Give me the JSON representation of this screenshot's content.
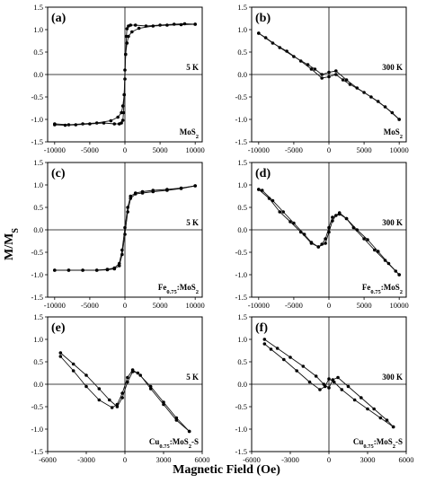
{
  "figure": {
    "xlabel": "Magnetic Field (Oe)",
    "ylabel": "M/M",
    "ylabel_sub": "S"
  },
  "chart_data": [
    {
      "type": "line",
      "label": "(a)",
      "temperature": "5 K",
      "sample": [
        {
          "t": "MoS"
        },
        {
          "t": "2",
          "sub": true
        }
      ],
      "xlim": [
        -11000,
        11000
      ],
      "ylim": [
        -1.5,
        1.5
      ],
      "xticks": [
        -10000,
        -5000,
        0,
        5000,
        10000
      ],
      "xtick_labels": [
        "-10000",
        "-5000",
        "0",
        "5000",
        "10000"
      ],
      "yticks": [
        -1.5,
        -1.0,
        -0.5,
        0.0,
        0.5,
        1.0,
        1.5
      ],
      "ytick_labels": [
        "-1.5",
        "-1.0",
        "-0.5",
        "0.0",
        "0.5",
        "1.0",
        "1.5"
      ],
      "series": [
        {
          "x": [
            -10000,
            -8000,
            -6000,
            -4000,
            -2000,
            -1000,
            -500,
            -300,
            -100,
            0,
            100,
            200,
            300,
            500,
            800,
            1500,
            3000,
            5000,
            7000,
            8500,
            10000
          ],
          "y": [
            -1.1,
            -1.12,
            -1.1,
            -1.08,
            -1.03,
            -0.95,
            -0.85,
            -0.7,
            -0.45,
            -0.1,
            0.45,
            0.85,
            1.02,
            1.08,
            1.1,
            1.1,
            1.08,
            1.1,
            1.12,
            1.13,
            1.12
          ]
        },
        {
          "x": [
            10000,
            8000,
            6000,
            4000,
            2000,
            1000,
            500,
            300,
            100,
            0,
            -100,
            -200,
            -300,
            -500,
            -800,
            -1500,
            -3000,
            -5000,
            -7000,
            -8500,
            -10000
          ],
          "y": [
            1.12,
            1.11,
            1.1,
            1.08,
            1.03,
            0.95,
            0.85,
            0.7,
            0.45,
            0.1,
            -0.45,
            -0.85,
            -1.02,
            -1.08,
            -1.1,
            -1.1,
            -1.08,
            -1.1,
            -1.12,
            -1.13,
            -1.12
          ]
        }
      ]
    },
    {
      "type": "line",
      "label": "(b)",
      "temperature": "300 K",
      "sample": [
        {
          "t": "MoS"
        },
        {
          "t": "2",
          "sub": true
        }
      ],
      "xlim": [
        -11000,
        11000
      ],
      "ylim": [
        -1.5,
        1.5
      ],
      "xticks": [
        -10000,
        -5000,
        0,
        5000,
        10000
      ],
      "xtick_labels": [
        "-10000",
        "-5000",
        "0",
        "5000",
        "10000"
      ],
      "yticks": [
        -1.5,
        -1.0,
        -0.5,
        0.0,
        0.5,
        1.0,
        1.5
      ],
      "ytick_labels": [
        "-1.5",
        "-1.0",
        "-0.5",
        "0.0",
        "0.5",
        "1.0",
        "1.5"
      ],
      "series": [
        {
          "x": [
            -10000,
            -8000,
            -6000,
            -4000,
            -2500,
            -1000,
            0,
            1000,
            2000,
            3000,
            5000,
            7000,
            9000,
            10000
          ],
          "y": [
            0.92,
            0.7,
            0.52,
            0.3,
            0.12,
            -0.08,
            -0.05,
            0.0,
            -0.12,
            -0.22,
            -0.4,
            -0.6,
            -0.85,
            -1.0
          ]
        },
        {
          "x": [
            10000,
            8000,
            6000,
            4000,
            2500,
            1000,
            0,
            -1000,
            -2000,
            -3000,
            -5000,
            -7000,
            -9000,
            -10000
          ],
          "y": [
            -1.0,
            -0.72,
            -0.5,
            -0.3,
            -0.12,
            0.08,
            0.05,
            0.0,
            0.12,
            0.22,
            0.4,
            0.6,
            0.82,
            0.92
          ]
        }
      ]
    },
    {
      "type": "line",
      "label": "(c)",
      "temperature": "5 K",
      "sample": [
        {
          "t": "Fe"
        },
        {
          "t": "0.75",
          "sub": true
        },
        {
          "t": ":MoS"
        },
        {
          "t": "2",
          "sub": true
        }
      ],
      "xlim": [
        -11000,
        11000
      ],
      "ylim": [
        -1.5,
        1.5
      ],
      "xticks": [
        -10000,
        -5000,
        0,
        5000,
        10000
      ],
      "xtick_labels": [
        "-10000",
        "-5000",
        "0",
        "5000",
        "10000"
      ],
      "yticks": [
        -1.5,
        -1.0,
        -0.5,
        0.0,
        0.5,
        1.0,
        1.5
      ],
      "ytick_labels": [
        "-1.5",
        "-1.0",
        "-0.5",
        "0.0",
        "0.5",
        "1.0",
        "1.5"
      ],
      "series": [
        {
          "x": [
            -10000,
            -8000,
            -6000,
            -4000,
            -2500,
            -1500,
            -800,
            -400,
            0,
            400,
            800,
            1500,
            2500,
            4000,
            6000,
            8000,
            10000
          ],
          "y": [
            -0.9,
            -0.9,
            -0.9,
            -0.9,
            -0.89,
            -0.87,
            -0.8,
            -0.55,
            -0.1,
            0.4,
            0.7,
            0.8,
            0.82,
            0.85,
            0.88,
            0.92,
            0.98
          ]
        },
        {
          "x": [
            10000,
            8000,
            6000,
            4000,
            2500,
            1500,
            800,
            400,
            0,
            -400,
            -800,
            -1500,
            -2500,
            -4000,
            -6000,
            -8000,
            -10000
          ],
          "y": [
            0.98,
            0.93,
            0.9,
            0.88,
            0.85,
            0.82,
            0.75,
            0.5,
            0.05,
            -0.45,
            -0.75,
            -0.85,
            -0.88,
            -0.9,
            -0.9,
            -0.9,
            -0.9
          ]
        }
      ]
    },
    {
      "type": "line",
      "label": "(d)",
      "temperature": "300 K",
      "sample": [
        {
          "t": "Fe"
        },
        {
          "t": "0.75",
          "sub": true
        },
        {
          "t": ":MoS"
        },
        {
          "t": "2",
          "sub": true
        }
      ],
      "xlim": [
        -11000,
        11000
      ],
      "ylim": [
        -1.5,
        1.5
      ],
      "xticks": [
        -10000,
        -5000,
        0,
        5000,
        10000
      ],
      "xtick_labels": [
        "-10000",
        "-5000",
        "0",
        "5000",
        "10000"
      ],
      "yticks": [
        -1.5,
        -1.0,
        -0.5,
        0.0,
        0.5,
        1.0,
        1.5
      ],
      "ytick_labels": [
        "-1.5",
        "-1.0",
        "-0.5",
        "0.0",
        "0.5",
        "1.0",
        "1.5"
      ],
      "series": [
        {
          "x": [
            -10000,
            -8500,
            -7000,
            -5500,
            -4000,
            -2500,
            -1500,
            -500,
            0,
            500,
            1000,
            1500,
            2500,
            3500,
            5000,
            6500,
            8000,
            9500,
            10000
          ],
          "y": [
            0.9,
            0.7,
            0.4,
            0.18,
            -0.05,
            -0.3,
            -0.38,
            -0.3,
            -0.05,
            0.2,
            0.32,
            0.38,
            0.25,
            0.05,
            -0.2,
            -0.45,
            -0.68,
            -0.92,
            -1.0
          ]
        },
        {
          "x": [
            10000,
            8500,
            7000,
            5500,
            4000,
            2500,
            1500,
            500,
            0,
            -500,
            -1000,
            -1500,
            -2500,
            -3500,
            -5000,
            -6500,
            -8000,
            -9500,
            -10000
          ],
          "y": [
            -1.0,
            -0.75,
            -0.48,
            -0.22,
            0.0,
            0.25,
            0.35,
            0.28,
            0.05,
            -0.2,
            -0.32,
            -0.38,
            -0.28,
            -0.1,
            0.15,
            0.4,
            0.65,
            0.88,
            0.9
          ]
        }
      ]
    },
    {
      "type": "line",
      "label": "(e)",
      "temperature": "5 K",
      "sample": [
        {
          "t": "Cu"
        },
        {
          "t": "0.75",
          "sub": true
        },
        {
          "t": ":MoS"
        },
        {
          "t": "2",
          "sub": true
        },
        {
          "t": "-S"
        }
      ],
      "xlim": [
        -6000,
        6000
      ],
      "ylim": [
        -1.5,
        1.5
      ],
      "xticks": [
        -6000,
        -3000,
        0,
        3000,
        6000
      ],
      "xtick_labels": [
        "-6000",
        "-3000",
        "0",
        "3000",
        "6000"
      ],
      "yticks": [
        -1.5,
        -1.0,
        -0.5,
        0.0,
        0.5,
        1.0,
        1.5
      ],
      "ytick_labels": [
        "-1.5",
        "-1.0",
        "-0.5",
        "0.0",
        "0.5",
        "1.0",
        "1.5"
      ],
      "series": [
        {
          "x": [
            -5000,
            -4000,
            -3000,
            -2000,
            -1200,
            -600,
            -200,
            200,
            600,
            1000,
            2000,
            3000,
            4000,
            5000
          ],
          "y": [
            0.7,
            0.45,
            0.2,
            -0.1,
            -0.35,
            -0.5,
            -0.3,
            0.05,
            0.28,
            0.25,
            -0.05,
            -0.4,
            -0.75,
            -1.05
          ]
        },
        {
          "x": [
            5000,
            4000,
            3000,
            2000,
            1200,
            600,
            200,
            -200,
            -600,
            -1000,
            -2000,
            -3000,
            -4000,
            -5000
          ],
          "y": [
            -1.05,
            -0.8,
            -0.45,
            -0.1,
            0.2,
            0.32,
            0.15,
            -0.2,
            -0.45,
            -0.52,
            -0.35,
            -0.05,
            0.3,
            0.62
          ]
        }
      ]
    },
    {
      "type": "line",
      "label": "(f)",
      "temperature": "300 K",
      "sample": [
        {
          "t": "Cu"
        },
        {
          "t": "0.75",
          "sub": true
        },
        {
          "t": ":MoS"
        },
        {
          "t": "2",
          "sub": true
        },
        {
          "t": "-S"
        }
      ],
      "xlim": [
        -6000,
        6000
      ],
      "ylim": [
        -1.5,
        1.5
      ],
      "xticks": [
        -6000,
        -3000,
        0,
        3000,
        6000
      ],
      "xtick_labels": [
        "-6000",
        "-3000",
        "0",
        "3000",
        "6000"
      ],
      "yticks": [
        -1.5,
        -1.0,
        -0.5,
        0.0,
        0.5,
        1.0,
        1.5
      ],
      "ytick_labels": [
        "-1.5",
        "-1.0",
        "-0.5",
        "0.0",
        "0.5",
        "1.0",
        "1.5"
      ],
      "series": [
        {
          "x": [
            -5000,
            -4000,
            -3000,
            -2000,
            -1000,
            -400,
            0,
            300,
            700,
            1500,
            2500,
            3500,
            4500,
            5000
          ],
          "y": [
            1.0,
            0.8,
            0.6,
            0.4,
            0.18,
            0.0,
            -0.08,
            0.1,
            0.15,
            -0.05,
            -0.3,
            -0.55,
            -0.8,
            -0.95
          ]
        },
        {
          "x": [
            5000,
            4000,
            3000,
            2000,
            1000,
            400,
            0,
            -300,
            -700,
            -1500,
            -2500,
            -3500,
            -4500,
            -5000
          ],
          "y": [
            -0.95,
            -0.75,
            -0.55,
            -0.35,
            -0.12,
            0.05,
            0.12,
            -0.05,
            -0.12,
            0.05,
            0.3,
            0.55,
            0.78,
            0.9
          ]
        }
      ]
    }
  ]
}
